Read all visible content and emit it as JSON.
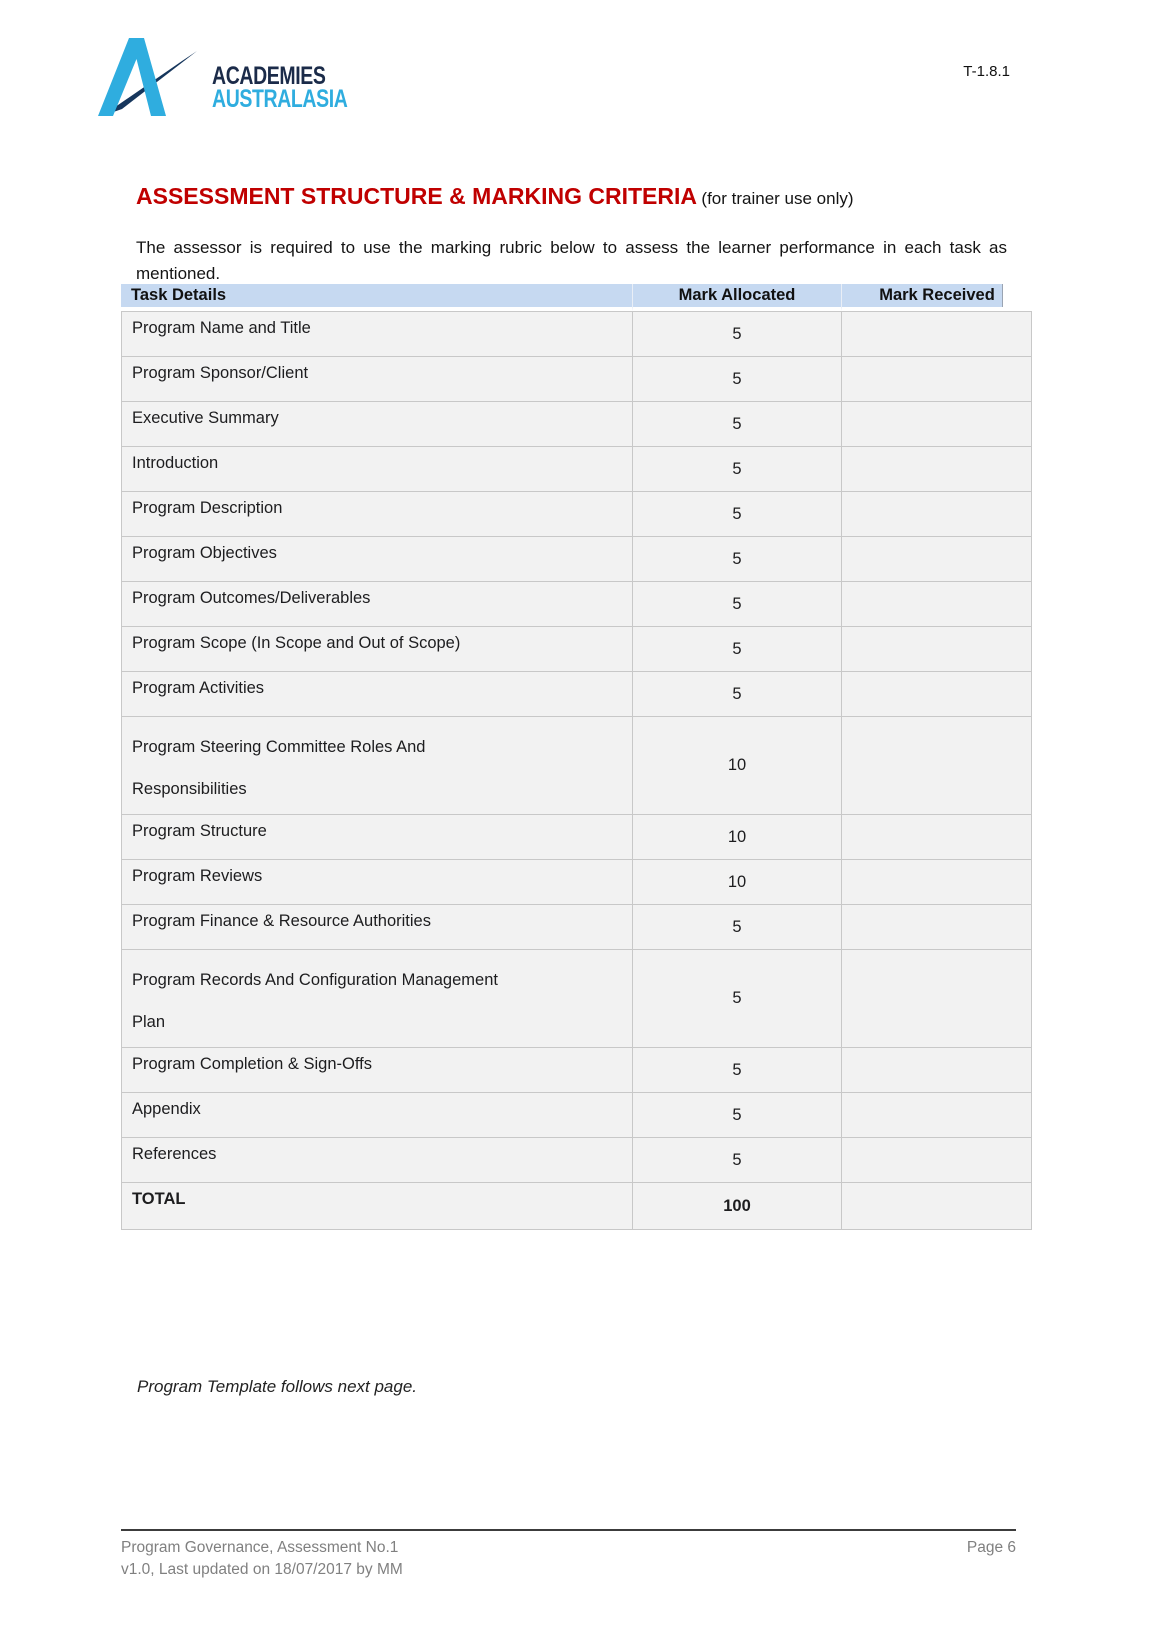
{
  "header": {
    "doc_code": "T-1.8.1",
    "logo": {
      "line1": "ACADEMIES",
      "line2": "AUSTRALASIA"
    }
  },
  "title": {
    "main": "ASSESSMENT STRUCTURE & MARKING CRITERIA",
    "suffix": "(for trainer use only)"
  },
  "intro": "The assessor is required to use the marking rubric below to assess the learner performance in each task as mentioned.",
  "table": {
    "columns": [
      "Task Details",
      "Mark Allocated",
      "Mark Received"
    ],
    "rows": [
      {
        "task": "Program Name and Title",
        "mark": "5"
      },
      {
        "task": "Program Sponsor/Client",
        "mark": "5"
      },
      {
        "task": "Executive Summary",
        "mark": "5"
      },
      {
        "task": "Introduction",
        "mark": "5"
      },
      {
        "task": "Program Description",
        "mark": "5"
      },
      {
        "task": "Program Objectives",
        "mark": "5"
      },
      {
        "task": "Program Outcomes/Deliverables",
        "mark": "5"
      },
      {
        "task": "Program Scope (In Scope and Out of Scope)",
        "mark": "5"
      },
      {
        "task": "Program Activities",
        "mark": "5"
      },
      {
        "task": "Program Steering Committee Roles And\nResponsibilities",
        "mark": "10",
        "tall": true
      },
      {
        "task": "Program Structure",
        "mark": "10"
      },
      {
        "task": "Program Reviews",
        "mark": "10"
      },
      {
        "task": "Program Finance & Resource Authorities",
        "mark": "5"
      },
      {
        "task": "Program Records And Configuration Management\nPlan",
        "mark": "5",
        "tall": true
      },
      {
        "task": "Program Completion & Sign-Offs",
        "mark": "5"
      },
      {
        "task": "Appendix",
        "mark": "5"
      },
      {
        "task": "References",
        "mark": "5"
      },
      {
        "task": "TOTAL",
        "mark": "100",
        "bold": true
      }
    ]
  },
  "note": "Program Template follows next page.",
  "footer": {
    "left_line1": "Program Governance, Assessment No.1",
    "left_line2": "v1.0, Last updated on 18/07/2017 by MM",
    "page": "Page 6"
  },
  "colors": {
    "accent_red": "#C00000",
    "table_header_blue": "#C6D9F1",
    "row_gray": "#F2F2F2",
    "logo_navy": "#1B2B49",
    "logo_cyan": "#2FADDF",
    "footer_gray": "#808080"
  }
}
